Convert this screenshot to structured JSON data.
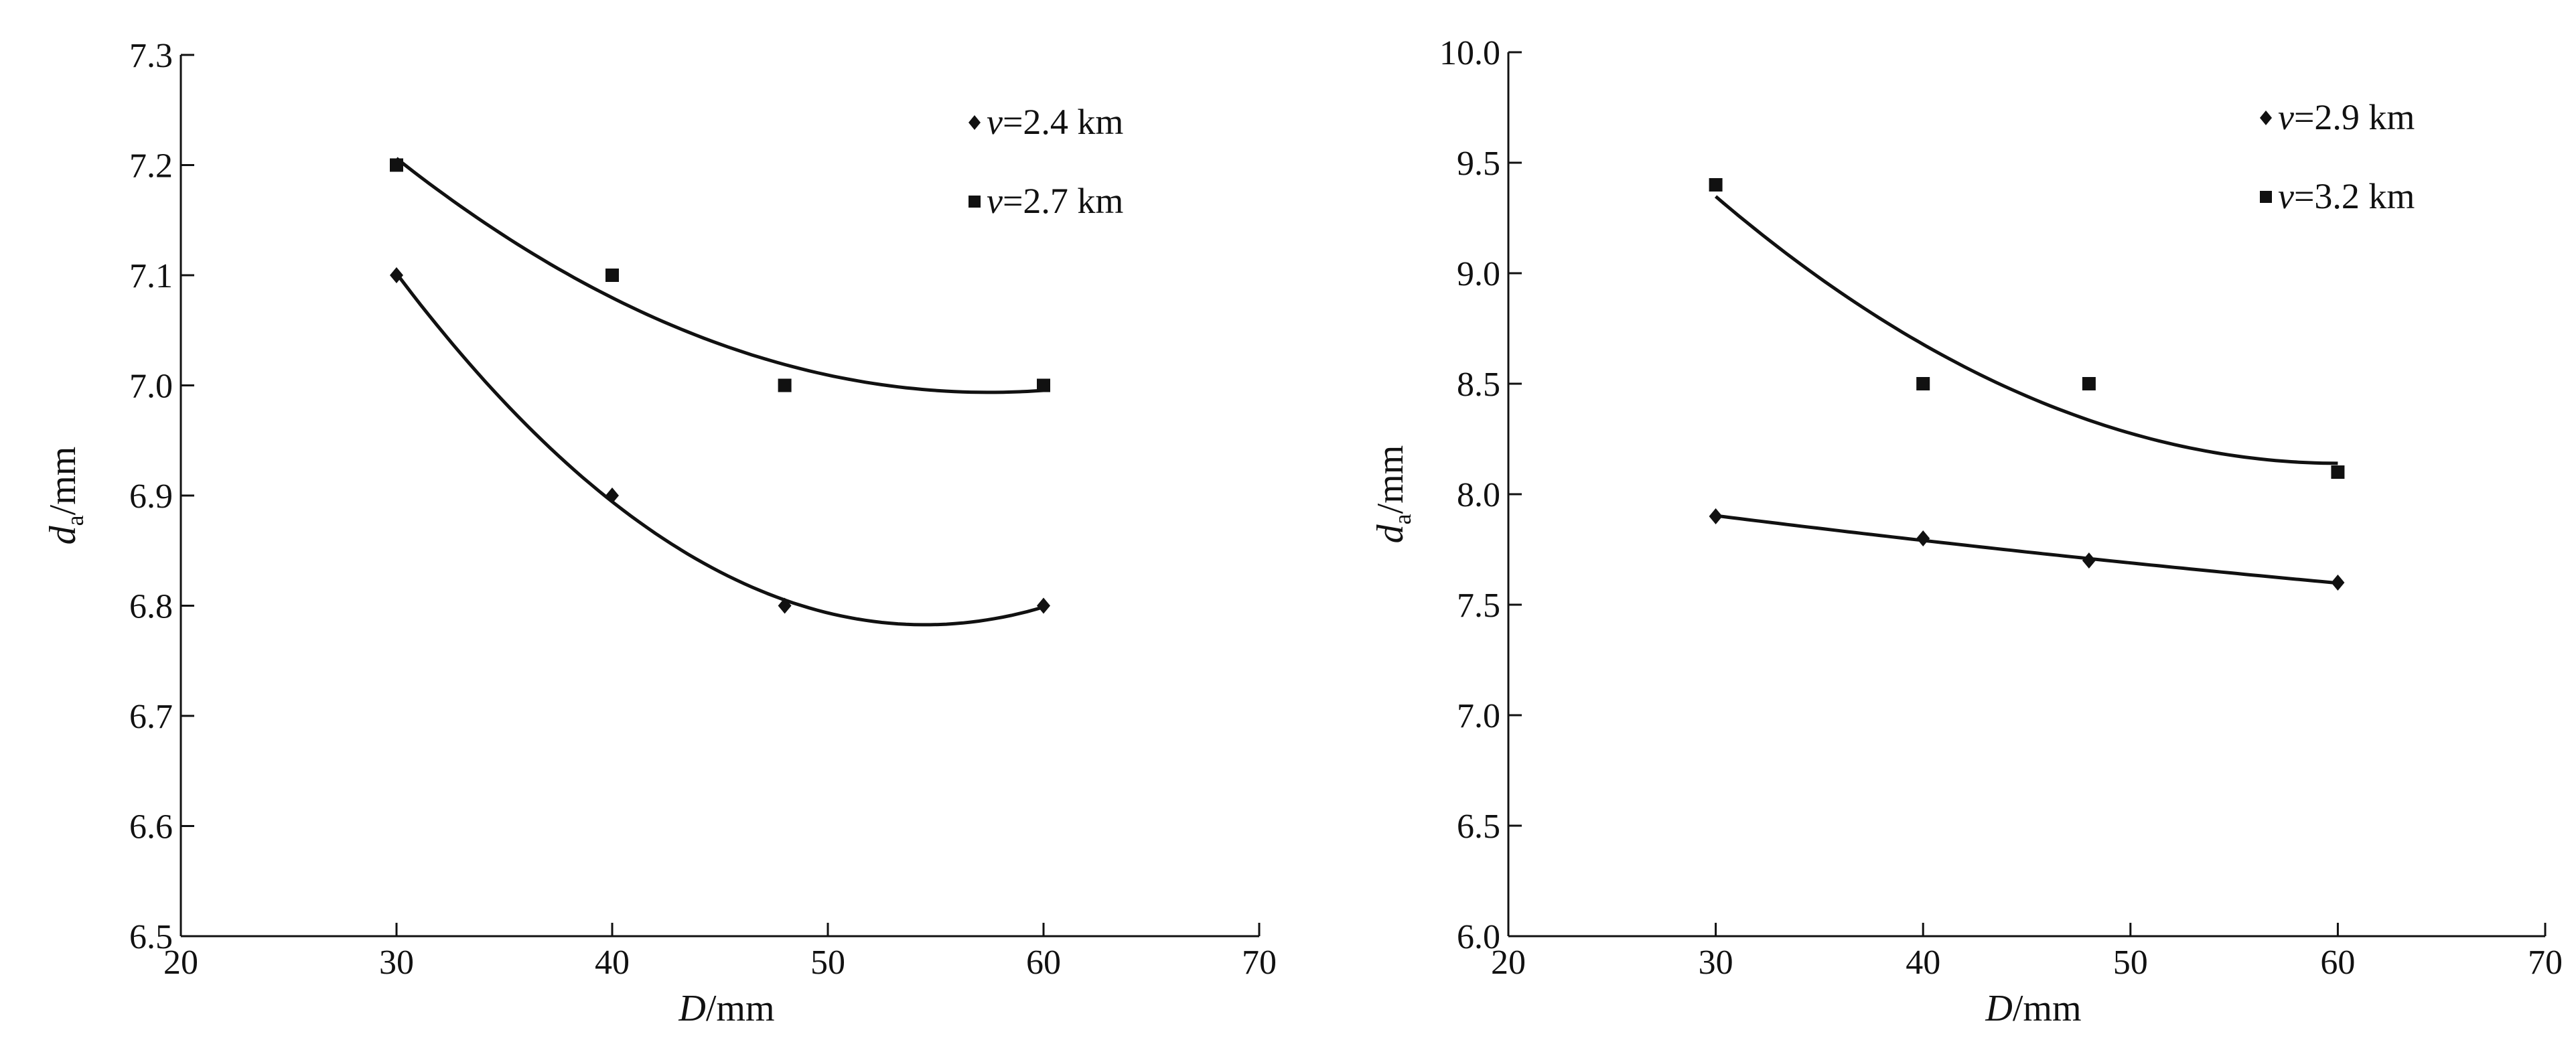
{
  "chart_data": [
    {
      "type": "scatter",
      "xlabel": {
        "var": "D",
        "unit": "/mm"
      },
      "ylabel": {
        "var": "d",
        "sub": "a",
        "unit": "/mm"
      },
      "xlim": [
        20,
        70
      ],
      "ylim": [
        6.5,
        7.3
      ],
      "xticks": [
        20,
        30,
        40,
        50,
        60,
        70
      ],
      "yticks": [
        6.5,
        6.6,
        6.7,
        6.8,
        6.9,
        7.0,
        7.1,
        7.2,
        7.3
      ],
      "ytick_decimals": 1,
      "legend_position": "top-right",
      "trendline": "polynomial",
      "series": [
        {
          "name": "v=2.4 km",
          "legend_var": "v",
          "legend_rest": "=2.4 km",
          "marker": "diamond",
          "x": [
            30,
            40,
            48,
            60
          ],
          "y": [
            7.1,
            6.9,
            6.8,
            6.8
          ]
        },
        {
          "name": "v=2.7 km",
          "legend_var": "v",
          "legend_rest": "=2.7 km",
          "marker": "square",
          "x": [
            30,
            40,
            48,
            60
          ],
          "y": [
            7.2,
            7.1,
            7.0,
            7.0
          ]
        }
      ]
    },
    {
      "type": "scatter",
      "xlabel": {
        "var": "D",
        "unit": "/mm"
      },
      "ylabel": {
        "var": "d",
        "sub": "a",
        "unit": "/mm"
      },
      "xlim": [
        20,
        70
      ],
      "ylim": [
        6.0,
        10.0
      ],
      "xticks": [
        20,
        30,
        40,
        50,
        60,
        70
      ],
      "yticks": [
        6.0,
        6.5,
        7.0,
        7.5,
        8.0,
        8.5,
        9.0,
        9.5,
        10.0
      ],
      "ytick_decimals": 1,
      "legend_position": "top-right",
      "trendline": "polynomial",
      "series": [
        {
          "name": "v=2.9 km",
          "legend_var": "v",
          "legend_rest": "=2.9 km",
          "marker": "diamond",
          "x": [
            30,
            40,
            48,
            60
          ],
          "y": [
            7.9,
            7.8,
            7.7,
            7.6
          ]
        },
        {
          "name": "v=3.2 km",
          "legend_var": "v",
          "legend_rest": "=3.2 km",
          "marker": "square",
          "x": [
            30,
            40,
            48,
            60
          ],
          "y": [
            9.4,
            8.5,
            8.5,
            8.1
          ]
        }
      ]
    }
  ]
}
